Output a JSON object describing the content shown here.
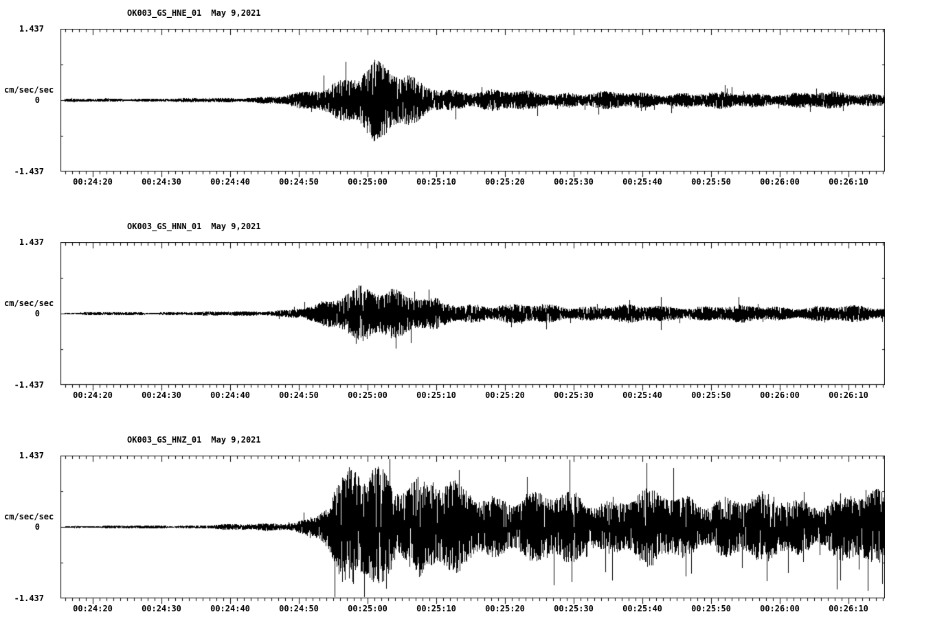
{
  "page": {
    "background": "#ffffff",
    "trace_color": "#000000"
  },
  "y_axis": {
    "unit": "cm/sec/sec",
    "max_label": "1.437",
    "zero_label": "0",
    "min_label": "-1.437"
  },
  "x_ticks": [
    "00:24:20",
    "00:24:30",
    "00:24:40",
    "00:24:50",
    "00:25:00",
    "00:25:10",
    "00:25:20",
    "00:25:30",
    "00:25:40",
    "00:25:50",
    "00:26:00",
    "00:26:10"
  ],
  "panels": [
    {
      "station": "OK003_GS_HNE_01",
      "date": "May 9,2021"
    },
    {
      "station": "OK003_GS_HNN_01",
      "date": "May 9,2021"
    },
    {
      "station": "OK003_GS_HNZ_01",
      "date": "May 9,2021"
    }
  ],
  "chart_data": [
    {
      "type": "line",
      "title": "OK003_GS_HNE_01 May 9,2021",
      "ylabel": "cm/sec/sec",
      "ylim": [
        -1.437,
        1.437
      ],
      "x_start": "00:24:15",
      "x_end": "00:26:15",
      "duration_s": 120,
      "x_tick_labels": [
        "00:24:20",
        "00:24:30",
        "00:24:40",
        "00:24:50",
        "00:25:00",
        "00:25:10",
        "00:25:20",
        "00:25:30",
        "00:25:40",
        "00:25:50",
        "00:26:00",
        "00:26:10"
      ],
      "seed": 11,
      "spike_prob": 0.01,
      "envelope": {
        "times_s": [
          0,
          18,
          26,
          32,
          36,
          39,
          41,
          43,
          44.5,
          46,
          48,
          50,
          53,
          57,
          62,
          70,
          80,
          95,
          110,
          120
        ],
        "amplitude_cm_per_s2": [
          0.03,
          0.035,
          0.05,
          0.085,
          0.16,
          0.3,
          0.48,
          0.68,
          0.78,
          0.79,
          0.62,
          0.46,
          0.32,
          0.23,
          0.19,
          0.165,
          0.155,
          0.145,
          0.15,
          0.135
        ]
      }
    },
    {
      "type": "line",
      "title": "OK003_GS_HNN_01 May 9,2021",
      "ylabel": "cm/sec/sec",
      "ylim": [
        -1.437,
        1.437
      ],
      "x_start": "00:24:15",
      "x_end": "00:26:15",
      "duration_s": 120,
      "x_tick_labels": [
        "00:24:20",
        "00:24:30",
        "00:24:40",
        "00:24:50",
        "00:25:00",
        "00:25:10",
        "00:25:20",
        "00:25:30",
        "00:25:40",
        "00:25:50",
        "00:26:00",
        "00:26:10"
      ],
      "seed": 23,
      "spike_prob": 0.01,
      "envelope": {
        "times_s": [
          0,
          20,
          28,
          33,
          37,
          40,
          42,
          44,
          46,
          48,
          50,
          53,
          57,
          62,
          70,
          80,
          95,
          110,
          120
        ],
        "amplitude_cm_per_s2": [
          0.025,
          0.032,
          0.048,
          0.08,
          0.15,
          0.3,
          0.5,
          0.63,
          0.66,
          0.55,
          0.4,
          0.29,
          0.22,
          0.185,
          0.165,
          0.155,
          0.15,
          0.145,
          0.14
        ]
      }
    },
    {
      "type": "line",
      "title": "OK003_GS_HNZ_01 May 9,2021",
      "ylabel": "cm/sec/sec",
      "ylim": [
        -1.437,
        1.437
      ],
      "x_start": "00:24:15",
      "x_end": "00:26:15",
      "duration_s": 120,
      "x_tick_labels": [
        "00:24:20",
        "00:24:30",
        "00:24:40",
        "00:24:50",
        "00:25:00",
        "00:25:10",
        "00:25:20",
        "00:25:30",
        "00:25:40",
        "00:25:50",
        "00:26:00",
        "00:26:10"
      ],
      "seed": 37,
      "spike_prob": 0.014,
      "envelope": {
        "times_s": [
          0,
          20,
          28,
          34,
          37,
          39,
          41,
          43,
          45,
          47,
          49,
          52,
          55,
          58,
          62,
          66,
          70,
          75,
          80,
          85,
          90,
          95,
          100,
          105,
          110,
          115,
          120
        ],
        "amplitude_cm_per_s2": [
          0.022,
          0.035,
          0.06,
          0.11,
          0.22,
          0.5,
          0.9,
          1.22,
          1.3,
          1.24,
          1.1,
          0.95,
          0.85,
          0.78,
          0.7,
          0.64,
          0.6,
          0.66,
          0.58,
          0.68,
          0.6,
          0.64,
          0.57,
          0.62,
          0.58,
          0.66,
          0.62
        ]
      }
    }
  ]
}
